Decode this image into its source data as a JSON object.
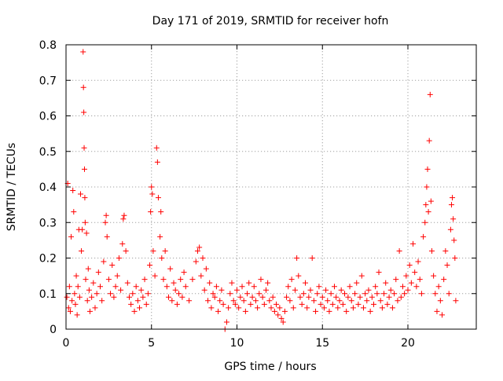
{
  "chart_data": {
    "type": "scatter",
    "title": "Day 171 of 2019, SRMTID for receiver hofn",
    "xlabel": "GPS time / hours",
    "ylabel": "SRMTID / TECUs",
    "xlim": [
      0,
      24
    ],
    "ylim": [
      0,
      0.8
    ],
    "x_ticks": [
      0,
      5,
      10,
      15,
      20
    ],
    "y_ticks": [
      0,
      0.1,
      0.2,
      0.3,
      0.4,
      0.5,
      0.6,
      0.7,
      0.8
    ],
    "x_tick_labels": [
      "0",
      "5",
      "10",
      "15",
      "20"
    ],
    "y_tick_labels": [
      "0",
      "0.1",
      "0.2",
      "0.3",
      "0.4",
      "0.5",
      "0.6",
      "0.7",
      "0.8"
    ],
    "grid": true,
    "marker": "+",
    "series_color": "#ff0000",
    "series": [
      {
        "name": "SRMTID",
        "points": [
          [
            0.05,
            0.09
          ],
          [
            0.1,
            0.41
          ],
          [
            0.15,
            0.06
          ],
          [
            0.2,
            0.12
          ],
          [
            0.25,
            0.05
          ],
          [
            0.3,
            0.26
          ],
          [
            0.35,
            0.08
          ],
          [
            0.4,
            0.39
          ],
          [
            0.45,
            0.33
          ],
          [
            0.5,
            0.1
          ],
          [
            0.55,
            0.07
          ],
          [
            0.6,
            0.15
          ],
          [
            0.65,
            0.04
          ],
          [
            0.7,
            0.12
          ],
          [
            0.75,
            0.28
          ],
          [
            0.8,
            0.09
          ],
          [
            0.85,
            0.38
          ],
          [
            0.9,
            0.22
          ],
          [
            0.95,
            0.28
          ],
          [
            1.0,
            0.78
          ],
          [
            1.02,
            0.68
          ],
          [
            1.04,
            0.61
          ],
          [
            1.06,
            0.51
          ],
          [
            1.08,
            0.45
          ],
          [
            1.1,
            0.37
          ],
          [
            1.12,
            0.3
          ],
          [
            1.15,
            0.14
          ],
          [
            1.2,
            0.27
          ],
          [
            1.25,
            0.08
          ],
          [
            1.3,
            0.17
          ],
          [
            1.35,
            0.11
          ],
          [
            1.4,
            0.05
          ],
          [
            1.5,
            0.09
          ],
          [
            1.6,
            0.13
          ],
          [
            1.7,
            0.06
          ],
          [
            1.8,
            0.1
          ],
          [
            1.9,
            0.16
          ],
          [
            2.0,
            0.12
          ],
          [
            2.1,
            0.08
          ],
          [
            2.2,
            0.19
          ],
          [
            2.3,
            0.3
          ],
          [
            2.35,
            0.32
          ],
          [
            2.4,
            0.26
          ],
          [
            2.5,
            0.14
          ],
          [
            2.6,
            0.1
          ],
          [
            2.7,
            0.18
          ],
          [
            2.8,
            0.09
          ],
          [
            2.9,
            0.12
          ],
          [
            3.0,
            0.15
          ],
          [
            3.1,
            0.2
          ],
          [
            3.2,
            0.11
          ],
          [
            3.3,
            0.24
          ],
          [
            3.35,
            0.31
          ],
          [
            3.4,
            0.32
          ],
          [
            3.5,
            0.22
          ],
          [
            3.6,
            0.13
          ],
          [
            3.7,
            0.09
          ],
          [
            3.8,
            0.07
          ],
          [
            3.9,
            0.1
          ],
          [
            4.0,
            0.05
          ],
          [
            4.1,
            0.12
          ],
          [
            4.2,
            0.08
          ],
          [
            4.3,
            0.06
          ],
          [
            4.4,
            0.11
          ],
          [
            4.5,
            0.09
          ],
          [
            4.6,
            0.14
          ],
          [
            4.7,
            0.07
          ],
          [
            4.8,
            0.1
          ],
          [
            4.9,
            0.18
          ],
          [
            4.95,
            0.33
          ],
          [
            5.0,
            0.4
          ],
          [
            5.05,
            0.38
          ],
          [
            5.1,
            0.22
          ],
          [
            5.2,
            0.15
          ],
          [
            5.3,
            0.51
          ],
          [
            5.35,
            0.47
          ],
          [
            5.4,
            0.37
          ],
          [
            5.5,
            0.26
          ],
          [
            5.55,
            0.33
          ],
          [
            5.6,
            0.2
          ],
          [
            5.7,
            0.14
          ],
          [
            5.8,
            0.22
          ],
          [
            5.9,
            0.12
          ],
          [
            6.0,
            0.09
          ],
          [
            6.1,
            0.17
          ],
          [
            6.2,
            0.08
          ],
          [
            6.3,
            0.13
          ],
          [
            6.4,
            0.11
          ],
          [
            6.5,
            0.07
          ],
          [
            6.6,
            0.1
          ],
          [
            6.7,
            0.14
          ],
          [
            6.8,
            0.09
          ],
          [
            6.9,
            0.16
          ],
          [
            7.0,
            0.12
          ],
          [
            7.2,
            0.08
          ],
          [
            7.4,
            0.14
          ],
          [
            7.6,
            0.19
          ],
          [
            7.7,
            0.22
          ],
          [
            7.8,
            0.23
          ],
          [
            7.9,
            0.15
          ],
          [
            8.0,
            0.2
          ],
          [
            8.1,
            0.11
          ],
          [
            8.2,
            0.17
          ],
          [
            8.3,
            0.08
          ],
          [
            8.4,
            0.13
          ],
          [
            8.5,
            0.06
          ],
          [
            8.6,
            0.1
          ],
          [
            8.7,
            0.09
          ],
          [
            8.8,
            0.12
          ],
          [
            8.9,
            0.05
          ],
          [
            9.0,
            0.08
          ],
          [
            9.1,
            0.11
          ],
          [
            9.2,
            0.07
          ],
          [
            9.3,
            0.0
          ],
          [
            9.4,
            0.02
          ],
          [
            9.5,
            0.06
          ],
          [
            9.6,
            0.1
          ],
          [
            9.7,
            0.13
          ],
          [
            9.8,
            0.08
          ],
          [
            9.9,
            0.07
          ],
          [
            10.0,
            0.11
          ],
          [
            10.1,
            0.06
          ],
          [
            10.2,
            0.09
          ],
          [
            10.3,
            0.12
          ],
          [
            10.4,
            0.08
          ],
          [
            10.5,
            0.05
          ],
          [
            10.6,
            0.1
          ],
          [
            10.7,
            0.13
          ],
          [
            10.8,
            0.07
          ],
          [
            10.9,
            0.09
          ],
          [
            11.0,
            0.12
          ],
          [
            11.1,
            0.08
          ],
          [
            11.2,
            0.06
          ],
          [
            11.3,
            0.1
          ],
          [
            11.4,
            0.14
          ],
          [
            11.5,
            0.09
          ],
          [
            11.6,
            0.07
          ],
          [
            11.7,
            0.11
          ],
          [
            11.8,
            0.13
          ],
          [
            11.9,
            0.08
          ],
          [
            12.0,
            0.06
          ],
          [
            12.1,
            0.09
          ],
          [
            12.2,
            0.05
          ],
          [
            12.3,
            0.07
          ],
          [
            12.4,
            0.04
          ],
          [
            12.5,
            0.06
          ],
          [
            12.6,
            0.03
          ],
          [
            12.7,
            0.02
          ],
          [
            12.8,
            0.05
          ],
          [
            12.9,
            0.09
          ],
          [
            13.0,
            0.12
          ],
          [
            13.1,
            0.08
          ],
          [
            13.2,
            0.14
          ],
          [
            13.3,
            0.06
          ],
          [
            13.4,
            0.11
          ],
          [
            13.5,
            0.2
          ],
          [
            13.6,
            0.15
          ],
          [
            13.7,
            0.09
          ],
          [
            13.8,
            0.07
          ],
          [
            13.9,
            0.1
          ],
          [
            14.0,
            0.13
          ],
          [
            14.1,
            0.06
          ],
          [
            14.2,
            0.09
          ],
          [
            14.3,
            0.11
          ],
          [
            14.4,
            0.2
          ],
          [
            14.5,
            0.08
          ],
          [
            14.6,
            0.05
          ],
          [
            14.7,
            0.1
          ],
          [
            14.8,
            0.12
          ],
          [
            14.9,
            0.07
          ],
          [
            15.0,
            0.09
          ],
          [
            15.1,
            0.06
          ],
          [
            15.2,
            0.11
          ],
          [
            15.3,
            0.08
          ],
          [
            15.4,
            0.05
          ],
          [
            15.5,
            0.1
          ],
          [
            15.6,
            0.07
          ],
          [
            15.7,
            0.12
          ],
          [
            15.8,
            0.09
          ],
          [
            15.9,
            0.06
          ],
          [
            16.0,
            0.08
          ],
          [
            16.1,
            0.11
          ],
          [
            16.2,
            0.07
          ],
          [
            16.3,
            0.1
          ],
          [
            16.4,
            0.05
          ],
          [
            16.5,
            0.09
          ],
          [
            16.6,
            0.12
          ],
          [
            16.7,
            0.08
          ],
          [
            16.8,
            0.06
          ],
          [
            16.9,
            0.1
          ],
          [
            17.0,
            0.13
          ],
          [
            17.1,
            0.07
          ],
          [
            17.2,
            0.09
          ],
          [
            17.3,
            0.15
          ],
          [
            17.4,
            0.06
          ],
          [
            17.5,
            0.1
          ],
          [
            17.6,
            0.08
          ],
          [
            17.7,
            0.11
          ],
          [
            17.8,
            0.05
          ],
          [
            17.9,
            0.09
          ],
          [
            18.0,
            0.07
          ],
          [
            18.1,
            0.12
          ],
          [
            18.2,
            0.1
          ],
          [
            18.3,
            0.16
          ],
          [
            18.4,
            0.08
          ],
          [
            18.5,
            0.06
          ],
          [
            18.6,
            0.1
          ],
          [
            18.7,
            0.13
          ],
          [
            18.8,
            0.07
          ],
          [
            18.9,
            0.09
          ],
          [
            19.0,
            0.11
          ],
          [
            19.1,
            0.06
          ],
          [
            19.2,
            0.1
          ],
          [
            19.3,
            0.14
          ],
          [
            19.4,
            0.08
          ],
          [
            19.5,
            0.22
          ],
          [
            19.6,
            0.09
          ],
          [
            19.7,
            0.12
          ],
          [
            19.8,
            0.1
          ],
          [
            19.9,
            0.15
          ],
          [
            20.0,
            0.11
          ],
          [
            20.1,
            0.18
          ],
          [
            20.2,
            0.13
          ],
          [
            20.3,
            0.24
          ],
          [
            20.4,
            0.16
          ],
          [
            20.5,
            0.12
          ],
          [
            20.6,
            0.19
          ],
          [
            20.7,
            0.14
          ],
          [
            20.8,
            0.1
          ],
          [
            20.9,
            0.26
          ],
          [
            21.0,
            0.3
          ],
          [
            21.05,
            0.35
          ],
          [
            21.1,
            0.4
          ],
          [
            21.15,
            0.45
          ],
          [
            21.2,
            0.33
          ],
          [
            21.25,
            0.53
          ],
          [
            21.3,
            0.66
          ],
          [
            21.35,
            0.36
          ],
          [
            21.4,
            0.22
          ],
          [
            21.5,
            0.15
          ],
          [
            21.6,
            0.1
          ],
          [
            21.7,
            0.05
          ],
          [
            21.8,
            0.12
          ],
          [
            21.9,
            0.08
          ],
          [
            22.0,
            0.04
          ],
          [
            22.1,
            0.14
          ],
          [
            22.2,
            0.22
          ],
          [
            22.3,
            0.18
          ],
          [
            22.4,
            0.1
          ],
          [
            22.5,
            0.28
          ],
          [
            22.55,
            0.35
          ],
          [
            22.6,
            0.37
          ],
          [
            22.65,
            0.31
          ],
          [
            22.7,
            0.25
          ],
          [
            22.75,
            0.2
          ],
          [
            22.8,
            0.08
          ]
        ]
      }
    ]
  }
}
